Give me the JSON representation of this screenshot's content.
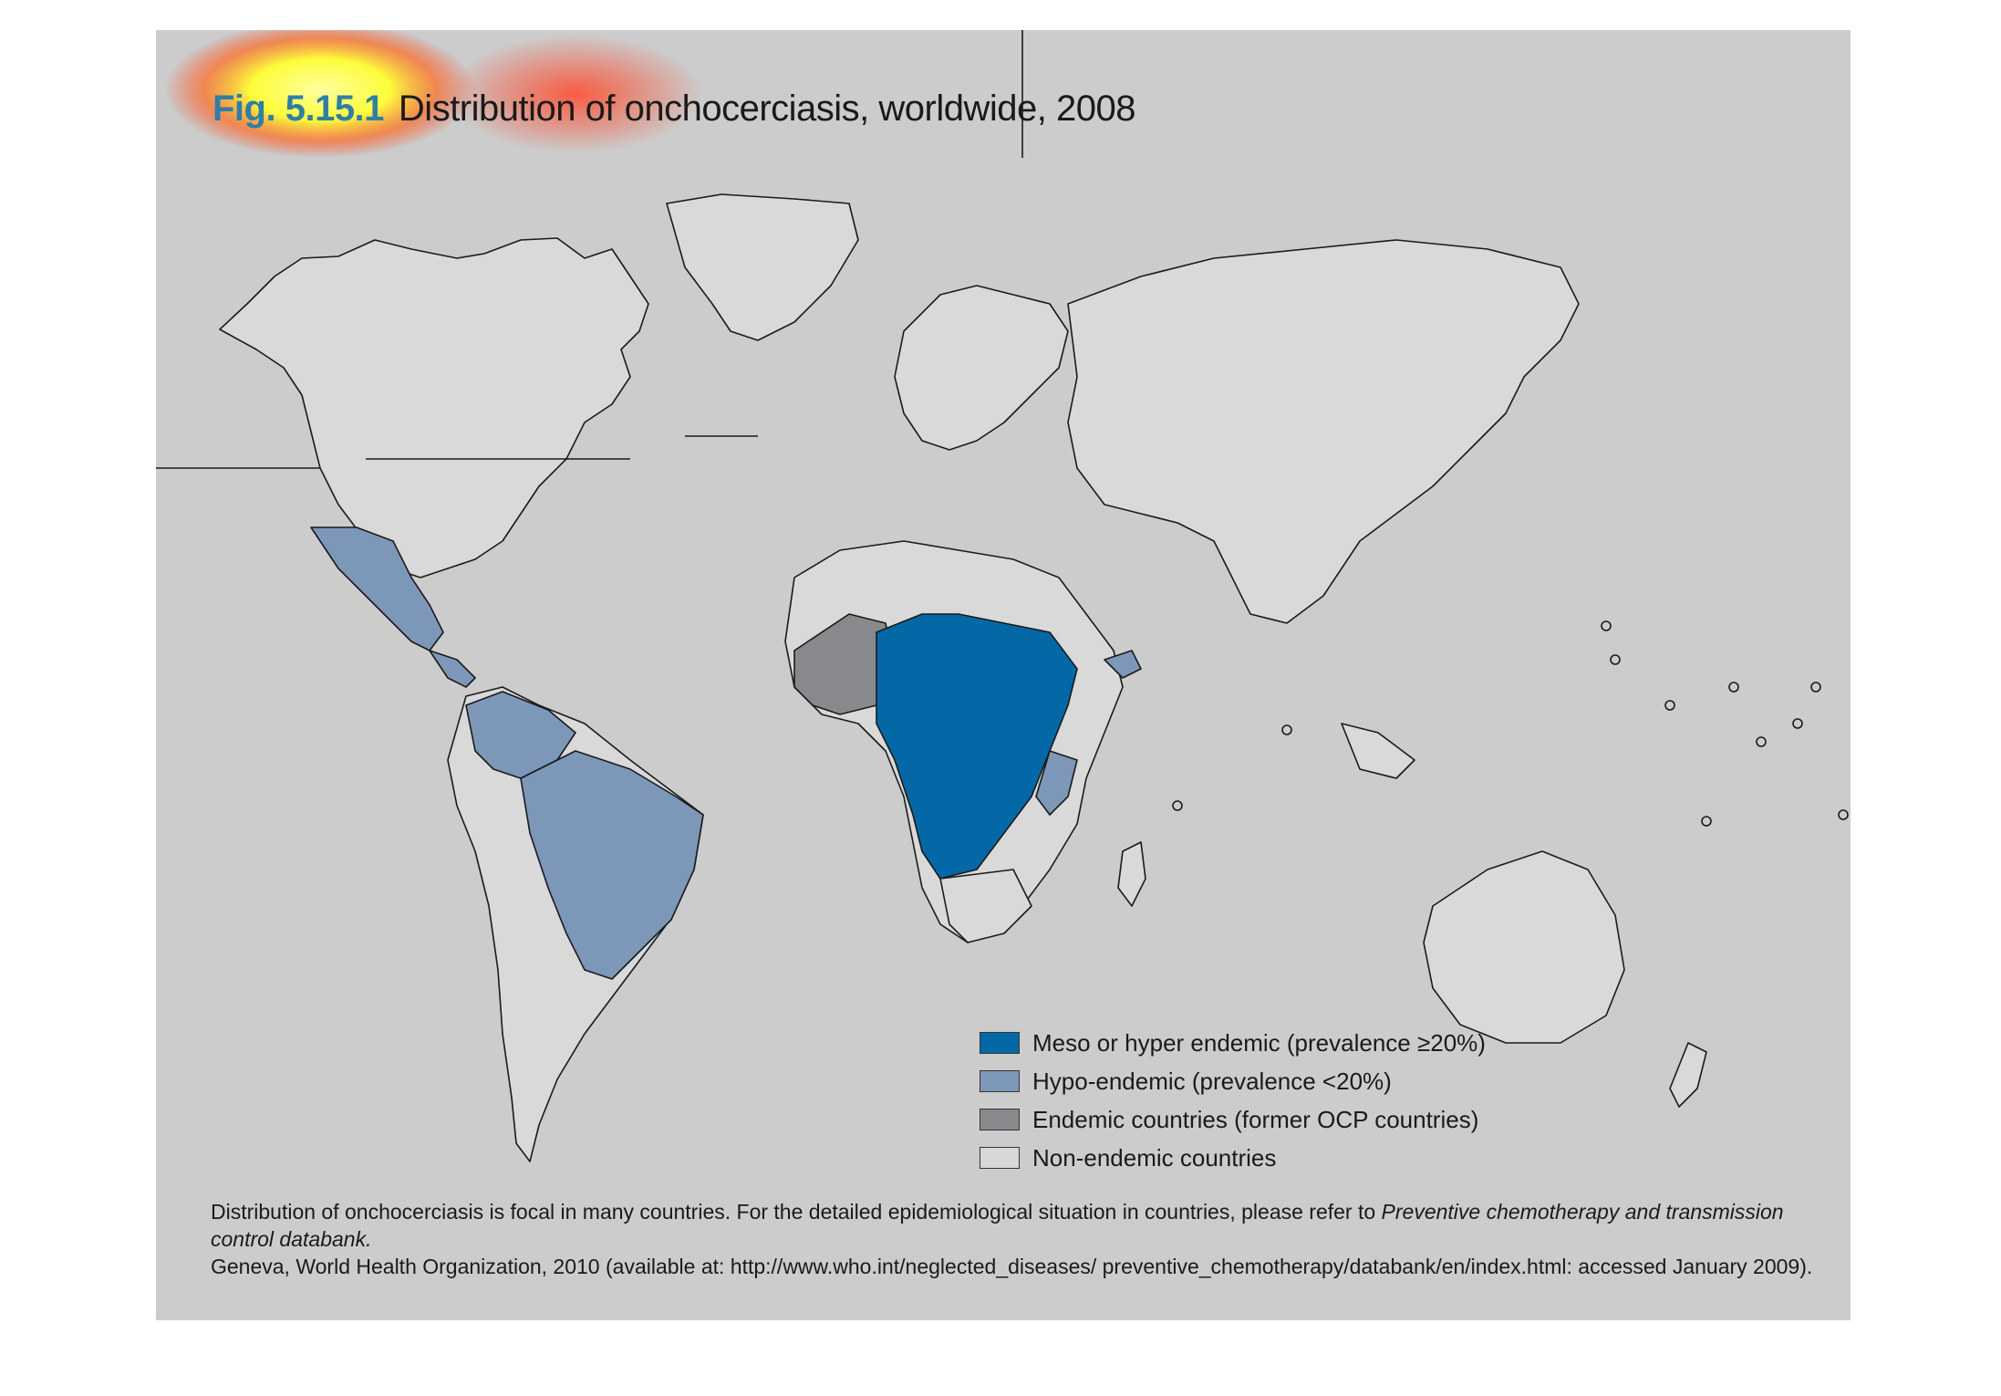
{
  "figure": {
    "fig_number": "Fig. 5.15.1",
    "title": "Distribution of onchocerciasis, worldwide, 2008"
  },
  "legend": {
    "items": [
      {
        "label": "Meso or hyper endemic (prevalence ≥20%)",
        "color": "#0568a6"
      },
      {
        "label": "Hypo-endemic (prevalence <20%)",
        "color": "#7d97b9"
      },
      {
        "label": "Endemic countries (former OCP countries)",
        "color": "#87898c"
      },
      {
        "label": "Non-endemic countries",
        "color": "#d8d8d8"
      }
    ]
  },
  "caption": {
    "line1_prefix": "Distribution of onchocerciasis is focal in many countries. For the detailed epidemiological situation in countries, please refer to ",
    "line1_italic": "Preventive chemotherapy and transmission control databank.",
    "line2": "Geneva, World Health Organization, 2010 (available at: http://www.who.int/neglected_diseases/ preventive_chemotherapy/databank/en/index.html: accessed January 2009)."
  },
  "colors": {
    "panel_bg": "#cccccc",
    "land": "#d9d9d9",
    "outline": "#1a1a1a",
    "heatmap_overlay": [
      "#ffff66",
      "#ff3b1a"
    ]
  }
}
